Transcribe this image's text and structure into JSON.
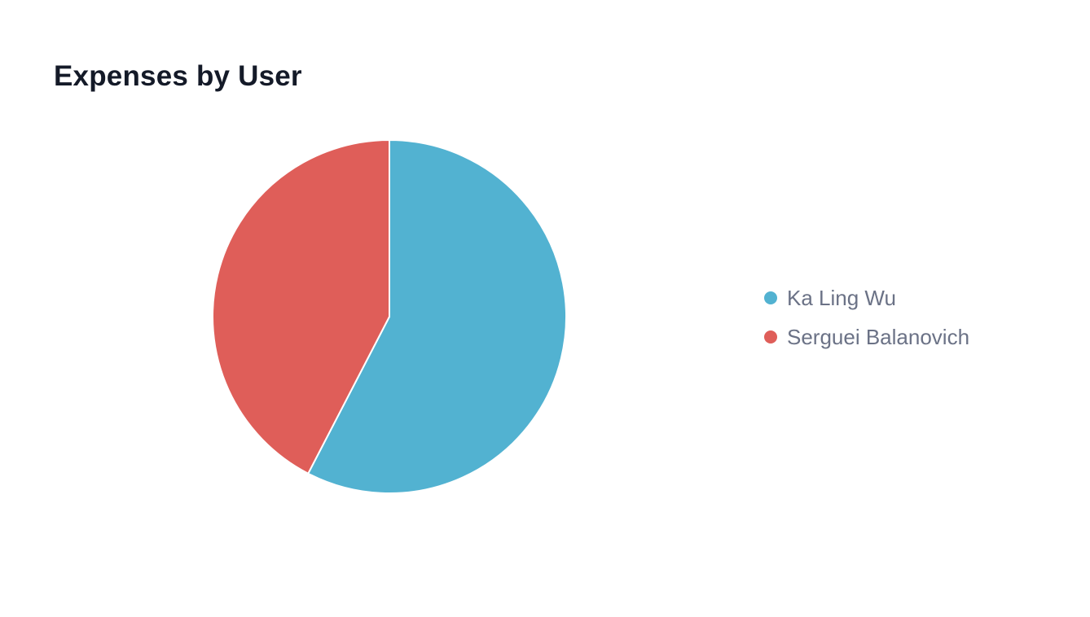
{
  "chart_data": {
    "type": "pie",
    "title": "Expenses by User",
    "categories": [
      "Ka Ling Wu",
      "Serguei Balanovich"
    ],
    "values": [
      57.6,
      42.4
    ],
    "colors": [
      "#52b2d1",
      "#df5e59"
    ],
    "legend": {
      "position": "right",
      "items": [
        {
          "label": "Ka Ling Wu",
          "color": "#52b2d1"
        },
        {
          "label": "Serguei Balanovich",
          "color": "#df5e59"
        }
      ]
    }
  }
}
